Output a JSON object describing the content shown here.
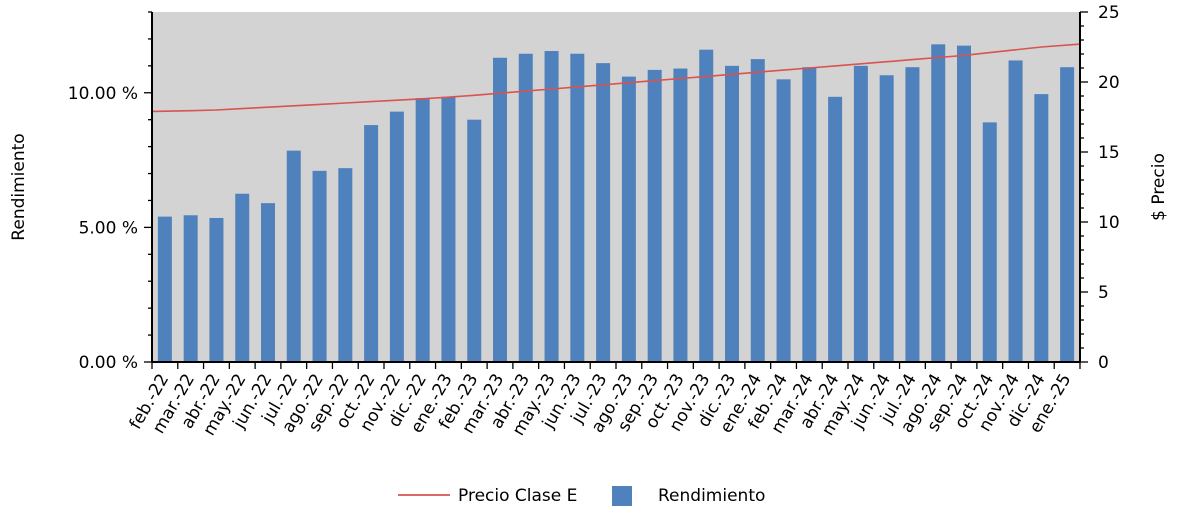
{
  "chart_data": {
    "type": "bar",
    "categories": [
      "feb.-22",
      "mar.-22",
      "abr.-22",
      "may.-22",
      "jun.-22",
      "jul.-22",
      "ago.-22",
      "sep.-22",
      "oct.-22",
      "nov.-22",
      "dic.-22",
      "ene.-23",
      "feb.-23",
      "mar.-23",
      "abr.-23",
      "may.-23",
      "jun.-23",
      "jul.-23",
      "ago.-23",
      "sep.-23",
      "oct.-23",
      "nov.-23",
      "dic.-23",
      "ene.-24",
      "feb.-24",
      "mar.-24",
      "abr.-24",
      "may.-24",
      "jun.-24",
      "jul.-24",
      "ago.-24",
      "sep.-24",
      "oct.-24",
      "nov.-24",
      "dic.-24",
      "ene.-25"
    ],
    "series": [
      {
        "name": "Rendimiento",
        "axis": "left",
        "kind": "bar",
        "color": "#4f81bd",
        "values": [
          5.4,
          5.45,
          5.35,
          6.25,
          5.9,
          7.85,
          7.1,
          7.2,
          8.8,
          9.3,
          9.8,
          9.85,
          9.0,
          11.3,
          11.45,
          11.55,
          11.45,
          11.1,
          10.6,
          10.85,
          10.9,
          11.6,
          11.0,
          11.25,
          10.5,
          10.95,
          9.85,
          11.0,
          10.65,
          10.95,
          11.8,
          11.75,
          8.9,
          11.2,
          9.95,
          10.95
        ]
      },
      {
        "name": "Precio Clase E",
        "axis": "right",
        "kind": "line",
        "color": "#d9534f",
        "values": [
          17.9,
          17.95,
          18.0,
          18.1,
          18.2,
          18.3,
          18.4,
          18.5,
          18.6,
          18.7,
          18.8,
          18.92,
          19.05,
          19.2,
          19.35,
          19.5,
          19.65,
          19.8,
          19.95,
          20.1,
          20.25,
          20.4,
          20.55,
          20.7,
          20.85,
          21.0,
          21.15,
          21.3,
          21.45,
          21.6,
          21.75,
          21.9,
          22.1,
          22.3,
          22.5,
          22.7
        ]
      }
    ],
    "ylabel": "Rendimiento",
    "ylim": [
      0,
      13.0
    ],
    "yticks": [
      0,
      5,
      10
    ],
    "ytick_labels": [
      "0.00 %",
      "5.00 %",
      "10.00 %"
    ],
    "y2label": "$ Precio",
    "y2lim": [
      0,
      25
    ],
    "y2ticks": [
      0,
      5,
      10,
      15,
      20,
      25
    ],
    "y2tick_labels": [
      "0",
      "5",
      "10",
      "15",
      "20",
      "25"
    ],
    "plot_background": "#d3d3d3",
    "grid": false,
    "legend_position": "bottom-center",
    "legend": [
      {
        "label": "Precio Clase E",
        "symbol": "line",
        "color": "#d9534f"
      },
      {
        "label": "Rendimiento",
        "symbol": "square",
        "color": "#4f81bd"
      }
    ]
  }
}
